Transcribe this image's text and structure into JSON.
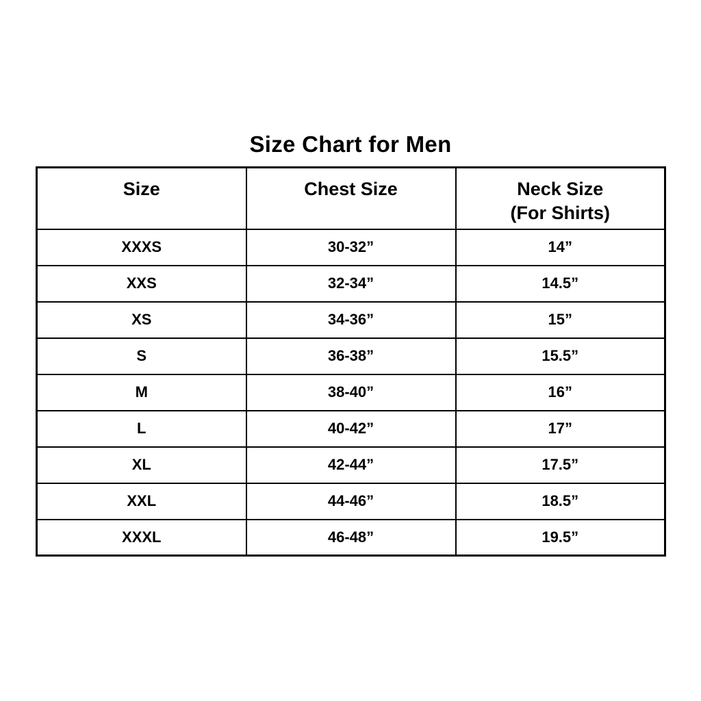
{
  "page": {
    "title": "Size Chart for Men"
  },
  "table": {
    "columns": [
      {
        "label": "Size"
      },
      {
        "label": "Chest Size"
      },
      {
        "label": "Neck Size",
        "sublabel": "(For Shirts)"
      }
    ],
    "rows": [
      {
        "size": "XXXS",
        "chest": "30-32”",
        "neck": "14”"
      },
      {
        "size": "XXS",
        "chest": "32-34”",
        "neck": "14.5”"
      },
      {
        "size": "XS",
        "chest": "34-36”",
        "neck": "15”"
      },
      {
        "size": "S",
        "chest": "36-38”",
        "neck": "15.5”"
      },
      {
        "size": "M",
        "chest": "38-40”",
        "neck": "16”"
      },
      {
        "size": "L",
        "chest": "40-42”",
        "neck": "17”"
      },
      {
        "size": "XL",
        "chest": "42-44”",
        "neck": "17.5”"
      },
      {
        "size": "XXL",
        "chest": "44-46”",
        "neck": "18.5”"
      },
      {
        "size": "XXXL",
        "chest": "46-48”",
        "neck": "19.5”"
      }
    ]
  },
  "chart_data": {
    "type": "table",
    "title": "Size Chart for Men",
    "columns": [
      "Size",
      "Chest Size",
      "Neck Size (For Shirts)"
    ],
    "rows": [
      [
        "XXXS",
        "30-32”",
        "14”"
      ],
      [
        "XXS",
        "32-34”",
        "14.5”"
      ],
      [
        "XS",
        "34-36”",
        "15”"
      ],
      [
        "S",
        "36-38”",
        "15.5”"
      ],
      [
        "M",
        "38-40”",
        "16”"
      ],
      [
        "L",
        "40-42”",
        "17”"
      ],
      [
        "XL",
        "42-44”",
        "17.5”"
      ],
      [
        "XXL",
        "44-46”",
        "18.5”"
      ],
      [
        "XXXL",
        "46-48”",
        "19.5”"
      ]
    ]
  }
}
